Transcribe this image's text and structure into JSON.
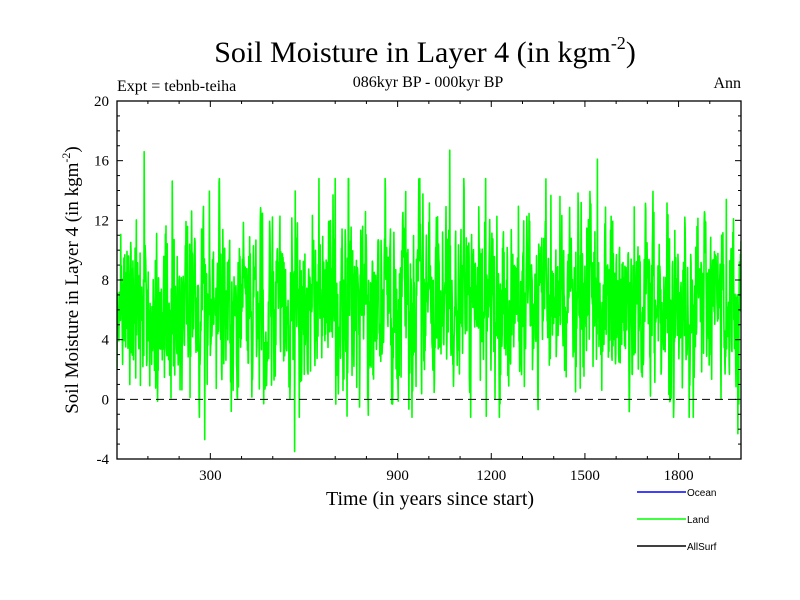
{
  "chart_data": {
    "type": "line",
    "title": "Soil Moisture in Layer 4 (in kgm",
    "title_sup": "-2",
    "title_close": ")",
    "subtitle": "086kyr BP - 000kyr BP",
    "expt_label": "Expt = tebnb-teiha",
    "period_label": "Ann",
    "xlabel": "Time (in years since start)",
    "ylabel": "Soil Moisture in Layer 4 (in kgm",
    "ylabel_sup": "-2",
    "ylabel_close": ")",
    "xlim": [
      1,
      2000
    ],
    "ylim": [
      -4,
      20
    ],
    "xticks": [
      300,
      900,
      1200,
      1500,
      1800
    ],
    "xtick_labels": [
      "300",
      "900",
      "1200",
      "1500",
      "1800"
    ],
    "yticks": [
      -4,
      0,
      4,
      8,
      12,
      16,
      20
    ],
    "ytick_labels": [
      "-4",
      "0",
      "4",
      "8",
      "12",
      "16",
      "20"
    ],
    "zero_line": 0,
    "legend": {
      "position": "bottom-right",
      "entries": [
        {
          "label": "Ocean",
          "color": "#0000ff"
        },
        {
          "label": "Land",
          "color": "#00ff00"
        },
        {
          "label": "AllSurf",
          "color": "#000000"
        }
      ]
    },
    "series": [
      {
        "name": "Land",
        "color": "#00ff00",
        "generated": true,
        "n": 2000,
        "mean": 6.5,
        "std": 2.9,
        "seed": 86,
        "extremes": [
          {
            "x": 88,
            "y": 16.6
          },
          {
            "x": 282,
            "y": -2.7
          },
          {
            "x": 570,
            "y": -3.5
          },
          {
            "x": 1067,
            "y": 16.7
          },
          {
            "x": 1540,
            "y": 16.1
          },
          {
            "x": 1953,
            "y": 13.4
          },
          {
            "x": 1990,
            "y": -2.3
          }
        ]
      }
    ]
  }
}
